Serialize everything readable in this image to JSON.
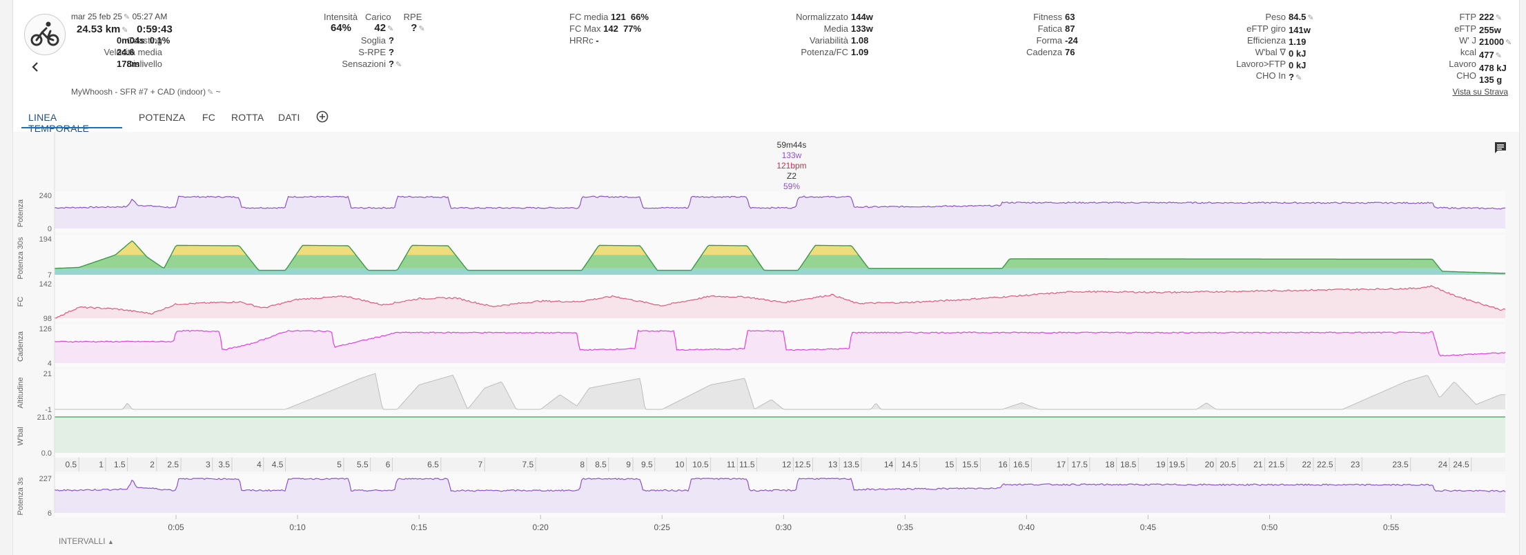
{
  "activity": {
    "date": "mar 25 feb 25",
    "time": "05:27 AM",
    "distance": "24.53 km",
    "duration": "0:59:43",
    "coasting_label": "Coasting",
    "coasting_value": "0m04s",
    "coasting_pct": "0.1%",
    "speed_label": "Velocità media",
    "speed_value": "24.6",
    "elev_label": "Dislivello",
    "elev_value": "178m",
    "name": "MyWhoosh - SFR #7 + CAD (indoor)",
    "name_suffix": "~"
  },
  "intensity": {
    "intensita_label": "Intensità",
    "intensita_value": "64%",
    "carico_label": "Carico",
    "carico_value": "42",
    "rpe_label": "RPE",
    "rpe_value": "?",
    "soglia_label": "Soglia",
    "soglia_value": "?",
    "srpe_label": "S-RPE",
    "srpe_value": "?",
    "sensazioni_label": "Sensazioni",
    "sensazioni_value": "?"
  },
  "hr": {
    "fcmedia_label": "FC media",
    "fcmedia_value": "121",
    "fcmedia_pct": "66%",
    "fcmax_label": "FC Max",
    "fcmax_value": "142",
    "fcmax_pct": "77%",
    "hrrc_label": "HRRc",
    "hrrc_value": "-"
  },
  "power": {
    "norm_label": "Normalizzato",
    "norm_value": "144w",
    "media_label": "Media",
    "media_value": "133w",
    "var_label": "Variabilità",
    "var_value": "1.08",
    "pfc_label": "Potenza/FC",
    "pfc_value": "1.09"
  },
  "fitness": {
    "fitness_label": "Fitness",
    "fitness_value": "63",
    "fatica_label": "Fatica",
    "fatica_value": "87",
    "forma_label": "Forma",
    "forma_value": "-24",
    "cadenza_label": "Cadenza",
    "cadenza_value": "76"
  },
  "athlete": {
    "peso_label": "Peso",
    "peso_value": "84.5",
    "eftpgiro_label": "eFTP giro",
    "eftpgiro_value": "141w",
    "eff_label": "Efficienza",
    "eff_value": "1.19",
    "wbal_label": "W'bal ∇",
    "wbal_value": "0 kJ",
    "lavoro_label": "Lavoro>FTP",
    "lavoro_value": "0 kJ",
    "choin_label": "CHO In",
    "choin_value": "?"
  },
  "ftp": {
    "ftp_label": "FTP",
    "ftp_value": "222",
    "eftp_label": "eFTP",
    "eftp_value": "255w",
    "wj_label": "W' J",
    "wj_value": "21000",
    "kcal_label": "kcal",
    "kcal_value": "477",
    "lav_label": "Lavoro",
    "lav_value": "478 kJ",
    "cho_label": "CHO",
    "cho_value": "135 g"
  },
  "strava_link": "Vista su Strava",
  "tabs": [
    {
      "label": "LINEA TEMPORALE"
    },
    {
      "label": "POTENZA"
    },
    {
      "label": "FC"
    },
    {
      "label": "ROTTA"
    },
    {
      "label": "DATI"
    }
  ],
  "hover": {
    "time": "59m44s",
    "power": "133w",
    "hr": "121bpm",
    "zone": "Z2",
    "pct": "59%"
  },
  "intervals_label": "INTERVALLI",
  "colors": {
    "accent": "#1e6fb8",
    "power": "#8a4fd6",
    "hr": "#e0577a",
    "cadence": "#e03ee0",
    "altitude": "#c8c8c8",
    "wbal": "#3f9b5a",
    "zone_green": "#39b54a",
    "zone_yellow": "#f2d040",
    "zone_teal": "#4dc0b5"
  },
  "icons": [
    "bike-icon",
    "back-arrow-icon",
    "add-tab-icon",
    "comment-icon",
    "pencil-icon",
    "chevron-up-icon"
  ],
  "chart_data": {
    "type": "line",
    "duration_minutes": 59.7,
    "x_axis_time_ticks": [
      "0:05",
      "0:10",
      "0:15",
      "0:20",
      "0:25",
      "0:30",
      "0:35",
      "0:40",
      "0:45",
      "0:50",
      "0:55"
    ],
    "x_axis_time_tick_minutes": [
      5,
      10,
      15,
      20,
      25,
      30,
      35,
      40,
      45,
      50,
      55
    ],
    "distance_ticks": [
      "0.5",
      "1",
      "1.5",
      "2",
      "2.5",
      "3",
      "3.5",
      "4",
      "4.5",
      "5",
      "5.5",
      "6",
      "6.5",
      "7",
      "7.5",
      "8",
      "8.5",
      "9",
      "9.5",
      "10",
      "10.5",
      "11",
      "11.5",
      "12",
      "12.5",
      "13",
      "13.5",
      "14",
      "14.5",
      "15",
      "15.5",
      "16",
      "16.5",
      "17",
      "17.5",
      "18",
      "18.5",
      "19",
      "19.5",
      "20",
      "20.5",
      "21",
      "21.5",
      "22",
      "22.5",
      "23",
      "23.5",
      "24",
      "24.5"
    ],
    "distance_tick_minutes": [
      1.0,
      2.1,
      3.0,
      4.2,
      5.2,
      6.5,
      7.3,
      8.6,
      9.5,
      11.9,
      13.0,
      13.9,
      15.9,
      17.7,
      19.8,
      21.9,
      22.8,
      23.8,
      24.7,
      26.0,
      27.0,
      28.1,
      28.9,
      30.4,
      31.2,
      32.3,
      33.2,
      34.6,
      35.6,
      37.1,
      38.1,
      39.3,
      40.2,
      41.7,
      42.6,
      43.7,
      44.6,
      45.8,
      46.6,
      47.8,
      48.7,
      49.8,
      50.7,
      51.8,
      52.7,
      53.8,
      55.8,
      57.4,
      58.3
    ],
    "power_intervals_minutes": [
      [
        5.0,
        7.6
      ],
      [
        9.6,
        12.1
      ],
      [
        14.1,
        16.2
      ],
      [
        21.7,
        24.1
      ],
      [
        26.2,
        28.5
      ],
      [
        30.6,
        32.8
      ]
    ],
    "steady_block_minutes": [
      39.0,
      56.8
    ],
    "series": [
      {
        "name": "Potenza",
        "ylim": [
          0,
          240
        ],
        "profile": [
          [
            0,
            150
          ],
          [
            1,
            152
          ],
          [
            3,
            158
          ],
          [
            3.2,
            215
          ],
          [
            3.4,
            170
          ],
          [
            5,
            150
          ],
          [
            5.1,
            230
          ],
          [
            7.6,
            228
          ],
          [
            7.7,
            150
          ],
          [
            9.5,
            150
          ],
          [
            9.6,
            230
          ],
          [
            12.1,
            228
          ],
          [
            12.2,
            148
          ],
          [
            14,
            150
          ],
          [
            14.1,
            230
          ],
          [
            16.2,
            228
          ],
          [
            16.3,
            148
          ],
          [
            21.6,
            150
          ],
          [
            21.7,
            230
          ],
          [
            24.1,
            228
          ],
          [
            24.2,
            150
          ],
          [
            26.1,
            150
          ],
          [
            26.2,
            230
          ],
          [
            28.5,
            228
          ],
          [
            28.6,
            150
          ],
          [
            30.5,
            150
          ],
          [
            30.6,
            230
          ],
          [
            32.8,
            228
          ],
          [
            32.9,
            155
          ],
          [
            38.9,
            165
          ],
          [
            39,
            188
          ],
          [
            56.7,
            185
          ],
          [
            56.8,
            150
          ],
          [
            59.5,
            145
          ]
        ]
      },
      {
        "name": "Potenza 30s",
        "ylim": [
          7,
          194
        ],
        "profile": [
          [
            0,
            40
          ],
          [
            1,
            45
          ],
          [
            2.5,
            110
          ],
          [
            3.2,
            185
          ],
          [
            3.8,
            100
          ],
          [
            4.5,
            40
          ],
          [
            5,
            160
          ],
          [
            7.6,
            158
          ],
          [
            8.4,
            30
          ],
          [
            9.5,
            30
          ],
          [
            10.2,
            160
          ],
          [
            12.1,
            158
          ],
          [
            12.9,
            30
          ],
          [
            14.1,
            30
          ],
          [
            14.7,
            160
          ],
          [
            16.2,
            158
          ],
          [
            17,
            30
          ],
          [
            21.7,
            30
          ],
          [
            22.4,
            160
          ],
          [
            24.1,
            158
          ],
          [
            24.8,
            30
          ],
          [
            26.2,
            30
          ],
          [
            26.9,
            160
          ],
          [
            28.5,
            158
          ],
          [
            29.2,
            30
          ],
          [
            30.6,
            30
          ],
          [
            31.3,
            160
          ],
          [
            32.8,
            158
          ],
          [
            33.5,
            40
          ],
          [
            39,
            40
          ],
          [
            39.3,
            90
          ],
          [
            56.7,
            88
          ],
          [
            57.1,
            25
          ],
          [
            59.5,
            15
          ]
        ]
      },
      {
        "name": "FC",
        "ylim": [
          98,
          142
        ],
        "profile": [
          [
            0,
            98
          ],
          [
            1,
            112
          ],
          [
            2.5,
            110
          ],
          [
            4,
            104
          ],
          [
            5,
            116
          ],
          [
            7.6,
            119
          ],
          [
            8.6,
            111
          ],
          [
            10,
            122
          ],
          [
            12,
            126
          ],
          [
            13.5,
            115
          ],
          [
            15,
            123
          ],
          [
            16.5,
            124
          ],
          [
            18,
            113
          ],
          [
            20,
            120
          ],
          [
            21.5,
            119
          ],
          [
            23,
            126
          ],
          [
            25,
            114
          ],
          [
            27,
            126
          ],
          [
            28.5,
            125
          ],
          [
            30,
            118
          ],
          [
            32,
            128
          ],
          [
            33,
            117
          ],
          [
            35,
            118
          ],
          [
            37,
            121
          ],
          [
            39,
            125
          ],
          [
            42,
            132
          ],
          [
            46,
            131
          ],
          [
            50,
            133
          ],
          [
            56,
            136
          ],
          [
            56.7,
            139
          ],
          [
            57.5,
            128
          ],
          [
            59.5,
            109
          ]
        ]
      },
      {
        "name": "Cadenza",
        "ylim": [
          4,
          126
        ],
        "profile": [
          [
            0,
            80
          ],
          [
            4.9,
            80
          ],
          [
            5,
            118
          ],
          [
            6.8,
            117
          ],
          [
            6.9,
            50
          ],
          [
            8,
            70
          ],
          [
            9.6,
            118
          ],
          [
            11.4,
            117
          ],
          [
            11.5,
            60
          ],
          [
            14.1,
            112
          ],
          [
            17,
            112
          ],
          [
            21.5,
            111
          ],
          [
            21.6,
            50
          ],
          [
            23.9,
            55
          ],
          [
            24,
            118
          ],
          [
            25.5,
            117
          ],
          [
            25.6,
            50
          ],
          [
            28.4,
            55
          ],
          [
            28.5,
            118
          ],
          [
            30,
            117
          ],
          [
            30.1,
            50
          ],
          [
            32.7,
            55
          ],
          [
            32.8,
            112
          ],
          [
            56.6,
            112
          ],
          [
            56.7,
            118
          ],
          [
            57,
            30
          ],
          [
            59.5,
            40
          ]
        ]
      },
      {
        "name": "Altitudine",
        "ylim": [
          -1,
          21
        ],
        "profile": [
          [
            0,
            -1
          ],
          [
            2.8,
            -1
          ],
          [
            3,
            3
          ],
          [
            3.2,
            -1
          ],
          [
            9.5,
            -1
          ],
          [
            11,
            8
          ],
          [
            12.6,
            18
          ],
          [
            13.2,
            21
          ],
          [
            13.5,
            -1
          ],
          [
            14.1,
            -1
          ],
          [
            15,
            14
          ],
          [
            16.4,
            20
          ],
          [
            17,
            -1
          ],
          [
            17.7,
            12
          ],
          [
            18.4,
            16
          ],
          [
            19,
            -1
          ],
          [
            20,
            -1
          ],
          [
            20.8,
            8
          ],
          [
            21.5,
            1
          ],
          [
            22,
            12
          ],
          [
            24.1,
            18
          ],
          [
            24.3,
            -1
          ],
          [
            25,
            -1
          ],
          [
            27,
            14
          ],
          [
            28.4,
            18
          ],
          [
            28.8,
            -1
          ],
          [
            29.5,
            5
          ],
          [
            30,
            -1
          ],
          [
            33.6,
            -1
          ],
          [
            33.8,
            3
          ],
          [
            34,
            -1
          ],
          [
            39,
            -1
          ],
          [
            39.8,
            3
          ],
          [
            40.5,
            -1
          ],
          [
            47,
            -1
          ],
          [
            47.4,
            3
          ],
          [
            47.8,
            -1
          ],
          [
            53,
            -1
          ],
          [
            55.6,
            16
          ],
          [
            56.5,
            20
          ],
          [
            57,
            6
          ],
          [
            57.6,
            16
          ],
          [
            58.5,
            2
          ],
          [
            59.5,
            8
          ]
        ]
      },
      {
        "name": "W'bal",
        "ylim": [
          0.0,
          21.0
        ],
        "profile": [
          [
            0,
            21
          ],
          [
            59.7,
            21
          ]
        ]
      },
      {
        "name": "Potenza 3s",
        "ylim": [
          6,
          227
        ],
        "profile": [
          [
            0,
            150
          ],
          [
            1,
            152
          ],
          [
            3,
            158
          ],
          [
            3.2,
            215
          ],
          [
            3.4,
            170
          ],
          [
            5,
            150
          ],
          [
            5.1,
            226
          ],
          [
            7.6,
            224
          ],
          [
            7.7,
            150
          ],
          [
            9.5,
            150
          ],
          [
            9.6,
            226
          ],
          [
            12.1,
            224
          ],
          [
            12.2,
            148
          ],
          [
            14,
            150
          ],
          [
            14.1,
            226
          ],
          [
            16.2,
            224
          ],
          [
            16.3,
            148
          ],
          [
            21.6,
            150
          ],
          [
            21.7,
            226
          ],
          [
            24.1,
            224
          ],
          [
            24.2,
            150
          ],
          [
            26.1,
            150
          ],
          [
            26.2,
            226
          ],
          [
            28.5,
            224
          ],
          [
            28.6,
            150
          ],
          [
            30.5,
            150
          ],
          [
            30.6,
            226
          ],
          [
            32.8,
            224
          ],
          [
            32.9,
            155
          ],
          [
            38.9,
            165
          ],
          [
            39,
            188
          ],
          [
            56.7,
            185
          ],
          [
            56.8,
            150
          ],
          [
            59.5,
            145
          ]
        ]
      }
    ]
  }
}
